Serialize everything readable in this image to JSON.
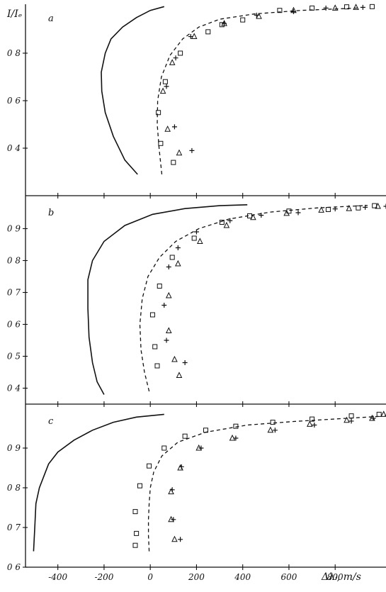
{
  "figure": {
    "ylabel": "I/Iₑ",
    "xlabel": "Δλᵢ, m/s",
    "x_ticks": [
      -400,
      -200,
      0,
      200,
      400,
      600,
      800
    ],
    "xlim": [
      -540,
      1020
    ]
  },
  "chart_data": [
    {
      "type": "scatter",
      "panel_label": "a",
      "ylim": [
        0.2,
        1.0
      ],
      "y_ticks": [
        0.4,
        0.6,
        0.8
      ],
      "series": [
        {
          "style": "solid",
          "points": [
            [
              -55,
              0.29
            ],
            [
              -110,
              0.35
            ],
            [
              -160,
              0.45
            ],
            [
              -195,
              0.55
            ],
            [
              -210,
              0.64
            ],
            [
              -212,
              0.72
            ],
            [
              -195,
              0.8
            ],
            [
              -170,
              0.86
            ],
            [
              -120,
              0.91
            ],
            [
              -60,
              0.95
            ],
            [
              0,
              0.98
            ],
            [
              60,
              0.996
            ]
          ]
        },
        {
          "style": "dashed",
          "points": [
            [
              50,
              0.29
            ],
            [
              38,
              0.4
            ],
            [
              30,
              0.5
            ],
            [
              32,
              0.6
            ],
            [
              48,
              0.7
            ],
            [
              85,
              0.79
            ],
            [
              140,
              0.86
            ],
            [
              210,
              0.91
            ],
            [
              300,
              0.943
            ],
            [
              450,
              0.965
            ],
            [
              650,
              0.98
            ],
            [
              900,
              0.99
            ]
          ]
        },
        {
          "marker": "square",
          "points": [
            [
              100,
              0.34
            ],
            [
              45,
              0.42
            ],
            [
              35,
              0.55
            ],
            [
              65,
              0.68
            ],
            [
              130,
              0.8
            ],
            [
              250,
              0.89
            ],
            [
              310,
              0.92
            ],
            [
              400,
              0.94
            ],
            [
              560,
              0.98
            ],
            [
              700,
              0.99
            ],
            [
              850,
              0.995
            ],
            [
              960,
              0.996
            ]
          ]
        },
        {
          "marker": "triangle",
          "points": [
            [
              125,
              0.38
            ],
            [
              75,
              0.48
            ],
            [
              55,
              0.64
            ],
            [
              95,
              0.76
            ],
            [
              190,
              0.87
            ],
            [
              320,
              0.925
            ],
            [
              470,
              0.955
            ],
            [
              620,
              0.98
            ],
            [
              800,
              0.99
            ],
            [
              890,
              0.993
            ]
          ]
        },
        {
          "marker": "plus",
          "points": [
            [
              180,
              0.39
            ],
            [
              105,
              0.49
            ],
            [
              70,
              0.66
            ],
            [
              110,
              0.78
            ],
            [
              175,
              0.87
            ],
            [
              320,
              0.925
            ],
            [
              460,
              0.96
            ],
            [
              620,
              0.975
            ],
            [
              760,
              0.99
            ],
            [
              920,
              0.993
            ]
          ]
        }
      ]
    },
    {
      "type": "scatter",
      "panel_label": "b",
      "ylim": [
        0.35,
        0.99
      ],
      "y_ticks": [
        0.4,
        0.5,
        0.6,
        0.7,
        0.8,
        0.9
      ],
      "series": [
        {
          "style": "solid",
          "points": [
            [
              -200,
              0.38
            ],
            [
              -230,
              0.42
            ],
            [
              -250,
              0.48
            ],
            [
              -265,
              0.56
            ],
            [
              -270,
              0.65
            ],
            [
              -270,
              0.74
            ],
            [
              -250,
              0.8
            ],
            [
              -200,
              0.86
            ],
            [
              -110,
              0.91
            ],
            [
              10,
              0.945
            ],
            [
              150,
              0.963
            ],
            [
              300,
              0.972
            ],
            [
              420,
              0.975
            ]
          ]
        },
        {
          "style": "dashed",
          "points": [
            [
              -5,
              0.39
            ],
            [
              -25,
              0.45
            ],
            [
              -40,
              0.52
            ],
            [
              -45,
              0.6
            ],
            [
              -35,
              0.68
            ],
            [
              -10,
              0.75
            ],
            [
              40,
              0.81
            ],
            [
              110,
              0.86
            ],
            [
              210,
              0.9
            ],
            [
              340,
              0.93
            ],
            [
              520,
              0.952
            ],
            [
              720,
              0.965
            ],
            [
              940,
              0.973
            ]
          ]
        },
        {
          "marker": "square",
          "points": [
            [
              30,
              0.47
            ],
            [
              20,
              0.53
            ],
            [
              10,
              0.63
            ],
            [
              40,
              0.72
            ],
            [
              95,
              0.81
            ],
            [
              190,
              0.87
            ],
            [
              310,
              0.92
            ],
            [
              430,
              0.94
            ],
            [
              600,
              0.955
            ],
            [
              770,
              0.96
            ],
            [
              900,
              0.965
            ],
            [
              970,
              0.972
            ]
          ]
        },
        {
          "marker": "triangle",
          "points": [
            [
              125,
              0.44
            ],
            [
              105,
              0.49
            ],
            [
              80,
              0.58
            ],
            [
              80,
              0.69
            ],
            [
              120,
              0.79
            ],
            [
              215,
              0.86
            ],
            [
              330,
              0.91
            ],
            [
              445,
              0.935
            ],
            [
              590,
              0.948
            ],
            [
              740,
              0.958
            ],
            [
              860,
              0.963
            ],
            [
              985,
              0.97
            ]
          ]
        },
        {
          "marker": "plus",
          "points": [
            [
              150,
              0.48
            ],
            [
              70,
              0.55
            ],
            [
              60,
              0.66
            ],
            [
              80,
              0.78
            ],
            [
              120,
              0.84
            ],
            [
              200,
              0.89
            ],
            [
              345,
              0.925
            ],
            [
              480,
              0.942
            ],
            [
              640,
              0.95
            ],
            [
              800,
              0.962
            ],
            [
              930,
              0.967
            ],
            [
              1020,
              0.97
            ]
          ]
        }
      ]
    },
    {
      "type": "scatter",
      "panel_label": "c",
      "ylim": [
        0.6,
        1.0
      ],
      "y_ticks": [
        0.6,
        0.7,
        0.8,
        0.9
      ],
      "series": [
        {
          "style": "solid",
          "points": [
            [
              -505,
              0.64
            ],
            [
              -500,
              0.7
            ],
            [
              -495,
              0.76
            ],
            [
              -480,
              0.8
            ],
            [
              -460,
              0.83
            ],
            [
              -440,
              0.86
            ],
            [
              -400,
              0.89
            ],
            [
              -330,
              0.92
            ],
            [
              -250,
              0.945
            ],
            [
              -160,
              0.965
            ],
            [
              -60,
              0.978
            ],
            [
              60,
              0.985
            ]
          ]
        },
        {
          "style": "dashed",
          "points": [
            [
              -5,
              0.64
            ],
            [
              -8,
              0.68
            ],
            [
              -8,
              0.72
            ],
            [
              -5,
              0.76
            ],
            [
              0,
              0.8
            ],
            [
              15,
              0.84
            ],
            [
              50,
              0.88
            ],
            [
              120,
              0.915
            ],
            [
              240,
              0.94
            ],
            [
              420,
              0.958
            ],
            [
              620,
              0.967
            ],
            [
              850,
              0.975
            ],
            [
              1000,
              0.98
            ]
          ]
        },
        {
          "marker": "square",
          "points": [
            [
              -65,
              0.655
            ],
            [
              -60,
              0.685
            ],
            [
              -65,
              0.74
            ],
            [
              -45,
              0.805
            ],
            [
              -5,
              0.855
            ],
            [
              60,
              0.9
            ],
            [
              150,
              0.93
            ],
            [
              240,
              0.945
            ],
            [
              370,
              0.955
            ],
            [
              530,
              0.965
            ],
            [
              700,
              0.973
            ],
            [
              870,
              0.981
            ],
            [
              990,
              0.985
            ]
          ]
        },
        {
          "marker": "triangle",
          "points": [
            [
              105,
              0.67
            ],
            [
              90,
              0.72
            ],
            [
              90,
              0.79
            ],
            [
              130,
              0.85
            ],
            [
              210,
              0.9
            ],
            [
              355,
              0.925
            ],
            [
              520,
              0.945
            ],
            [
              690,
              0.96
            ],
            [
              850,
              0.97
            ],
            [
              960,
              0.975
            ],
            [
              1010,
              0.985
            ]
          ]
        },
        {
          "marker": "plus",
          "points": [
            [
              130,
              0.67
            ],
            [
              100,
              0.72
            ],
            [
              95,
              0.795
            ],
            [
              135,
              0.853
            ],
            [
              220,
              0.9
            ],
            [
              370,
              0.925
            ],
            [
              540,
              0.945
            ],
            [
              710,
              0.958
            ],
            [
              870,
              0.968
            ],
            [
              965,
              0.975
            ],
            [
              1025,
              0.982
            ]
          ]
        }
      ]
    }
  ]
}
